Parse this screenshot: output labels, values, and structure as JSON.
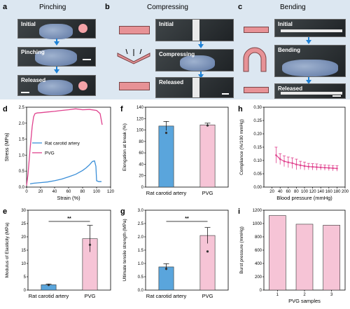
{
  "panels": {
    "a": {
      "letter": "a",
      "title": "Pinching",
      "labels": [
        "Initial",
        "Pinching",
        "Released"
      ]
    },
    "b": {
      "letter": "b",
      "title": "Compressing",
      "labels": [
        "Initial",
        "Compressing",
        "Released"
      ]
    },
    "c": {
      "letter": "c",
      "title": "Bending",
      "labels": [
        "Initial",
        "Bending",
        "Released"
      ]
    },
    "d": {
      "letter": "d"
    },
    "e": {
      "letter": "e"
    },
    "f": {
      "letter": "f"
    },
    "g": {
      "letter": "g"
    },
    "h": {
      "letter": "h"
    },
    "i": {
      "letter": "i"
    }
  },
  "significance_mark": "**",
  "colors": {
    "blue": "#3b8fd8",
    "pink": "#e0428e",
    "pinkbar": "#f6c4d6",
    "bluebar": "#5aa5dc",
    "banner": "#dce7f1"
  },
  "chart_data": [
    {
      "id": "d",
      "type": "line",
      "xlabel": "Strain (%)",
      "ylabel": "Stress (MPa)",
      "xlim": [
        0,
        120
      ],
      "ylim": [
        0,
        2.5
      ],
      "xticks": [
        0,
        20,
        40,
        60,
        80,
        100,
        120
      ],
      "yticks": [
        0.0,
        0.5,
        1.0,
        1.5,
        2.0,
        2.5
      ],
      "legend_position": "center-left",
      "series": [
        {
          "name": "Rat carotid artery",
          "color": "#3b8fd8",
          "x": [
            5,
            10,
            20,
            30,
            40,
            50,
            60,
            70,
            80,
            85,
            90,
            94,
            97,
            99,
            100,
            103,
            107
          ],
          "y": [
            0.1,
            0.12,
            0.14,
            0.16,
            0.2,
            0.25,
            0.32,
            0.4,
            0.52,
            0.6,
            0.7,
            0.8,
            0.82,
            0.65,
            0.2,
            0.17,
            0.17
          ]
        },
        {
          "name": "PVG",
          "color": "#e0428e",
          "x": [
            0,
            2,
            5,
            8,
            10,
            12,
            15,
            20,
            30,
            40,
            50,
            60,
            70,
            80,
            90,
            100,
            105,
            108
          ],
          "y": [
            0.05,
            0.4,
            1.2,
            1.9,
            2.2,
            2.3,
            2.32,
            2.33,
            2.35,
            2.37,
            2.4,
            2.42,
            2.45,
            2.42,
            2.43,
            2.4,
            2.3,
            1.95
          ]
        }
      ]
    },
    {
      "id": "e",
      "type": "bar",
      "ylabel": "Modulus of Elasticity (MPa)",
      "categories": [
        "Rat carotid artery",
        "PVG"
      ],
      "values": [
        2.0,
        19.3
      ],
      "errors": [
        0.3,
        5.0
      ],
      "points": [
        [
          1.9
        ],
        [
          17.0
        ]
      ],
      "ylim": [
        0,
        30
      ],
      "yticks": [
        0,
        5,
        10,
        15,
        20,
        25,
        30
      ],
      "significance": "**"
    },
    {
      "id": "f",
      "type": "bar",
      "ylabel": "Elongation at break (%)",
      "categories": [
        "Rat carotid artery",
        "PVG"
      ],
      "values": [
        107,
        109
      ],
      "errors": [
        8,
        3
      ],
      "points": [
        [
          95
        ],
        [
          108
        ]
      ],
      "ylim": [
        0,
        140
      ],
      "yticks": [
        0,
        20,
        40,
        60,
        80,
        100,
        120,
        140
      ]
    },
    {
      "id": "g",
      "type": "bar",
      "ylabel": "Ultimate tensile strength (MPa)",
      "categories": [
        "Rat carotid artery",
        "PVG"
      ],
      "values": [
        0.87,
        2.05
      ],
      "errors": [
        0.12,
        0.3
      ],
      "points": [
        [
          0.8
        ],
        [
          1.45
        ]
      ],
      "ylim": [
        0,
        3.0
      ],
      "yticks": [
        0.0,
        0.5,
        1.0,
        1.5,
        2.0,
        2.5,
        3.0
      ],
      "significance": "**"
    },
    {
      "id": "h",
      "type": "line",
      "xlabel": "Blood pressure (mmHg)",
      "ylabel": "Compliance (%/100 mmHg)",
      "xlim": [
        0,
        200
      ],
      "ylim": [
        0,
        0.3
      ],
      "xticks": [
        20,
        40,
        60,
        80,
        100,
        120,
        140,
        160,
        180,
        200
      ],
      "yticks": [
        0.0,
        0.05,
        0.1,
        0.15,
        0.2,
        0.25,
        0.3
      ],
      "series": [
        {
          "name": "",
          "color": "#e0428e",
          "x": [
            30,
            40,
            50,
            60,
            70,
            80,
            90,
            100,
            110,
            120,
            130,
            140,
            150,
            160,
            170,
            180
          ],
          "y": [
            0.12,
            0.105,
            0.097,
            0.093,
            0.09,
            0.085,
            0.082,
            0.079,
            0.077,
            0.076,
            0.075,
            0.074,
            0.073,
            0.072,
            0.071,
            0.07
          ],
          "errors": [
            0.03,
            0.02,
            0.02,
            0.02,
            0.02,
            0.02,
            0.015,
            0.015,
            0.012,
            0.012,
            0.012,
            0.01,
            0.01,
            0.01,
            0.01,
            0.01
          ]
        }
      ]
    },
    {
      "id": "i",
      "type": "bar",
      "xlabel": "PVG samples",
      "ylabel": "Burst pressure (mmHg)",
      "categories": [
        "1",
        "2",
        "3"
      ],
      "values": [
        1120,
        990,
        975
      ],
      "ylim": [
        0,
        1200
      ],
      "yticks": [
        0,
        200,
        400,
        600,
        800,
        1000,
        1200
      ]
    }
  ]
}
